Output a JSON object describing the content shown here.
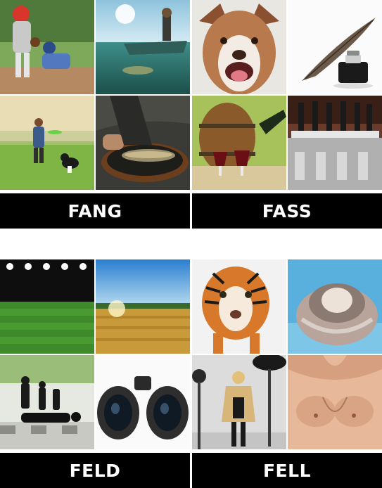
{
  "tiles": [
    {
      "word": "FANG",
      "images": [
        "baseball-catch-scene",
        "fishing-boat-scene",
        "frisbee-dog-scene",
        "fish-in-net-scene"
      ]
    },
    {
      "word": "FASS",
      "images": [
        "dog-face",
        "quill-and-inkwell",
        "wine-barrel-glasses",
        "beer-taps"
      ]
    },
    {
      "word": "FELD",
      "images": [
        "stadium-field-lights",
        "wheat-field-sunrise",
        "chess-pieces",
        "binoculars"
      ]
    },
    {
      "word": "FELL",
      "images": [
        "tiger-walking",
        "long-haired-guinea-pig",
        "fur-coat-photoshoot",
        "hairy-chest"
      ]
    }
  ],
  "colors": {
    "label_bg": "#000000",
    "label_text": "#ffffff",
    "page_bg": "#ffffff"
  }
}
